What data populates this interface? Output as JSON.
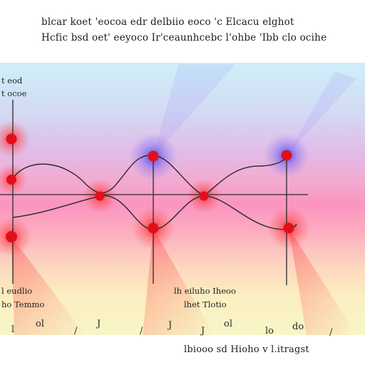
{
  "header": {
    "line1": "blcar koet 'eocoa edr delbiio eoco 'c Elcacu elghot",
    "line2": "Hcfic bsd oet' eeyoco Ir'ceaunhcebc l'ohbe 'Ibb clo ocihe"
  },
  "labels": {
    "top_left_1": "t   eod",
    "top_left_2": "t ocoe",
    "bottom_left_1": "l   eudlio",
    "bottom_left_2": "ho Temmo",
    "bottom_mid_1": "lh eiluho Iheoo",
    "bottom_mid_2": "lhet  Tlotio"
  },
  "tick_glyphs": [
    "l",
    "ol",
    "/",
    "J",
    "/",
    "J",
    "J",
    "ol",
    "lo",
    "do",
    "/"
  ],
  "footer": {
    "text": "lbiooo sd Hioho v l.itragst"
  }
}
